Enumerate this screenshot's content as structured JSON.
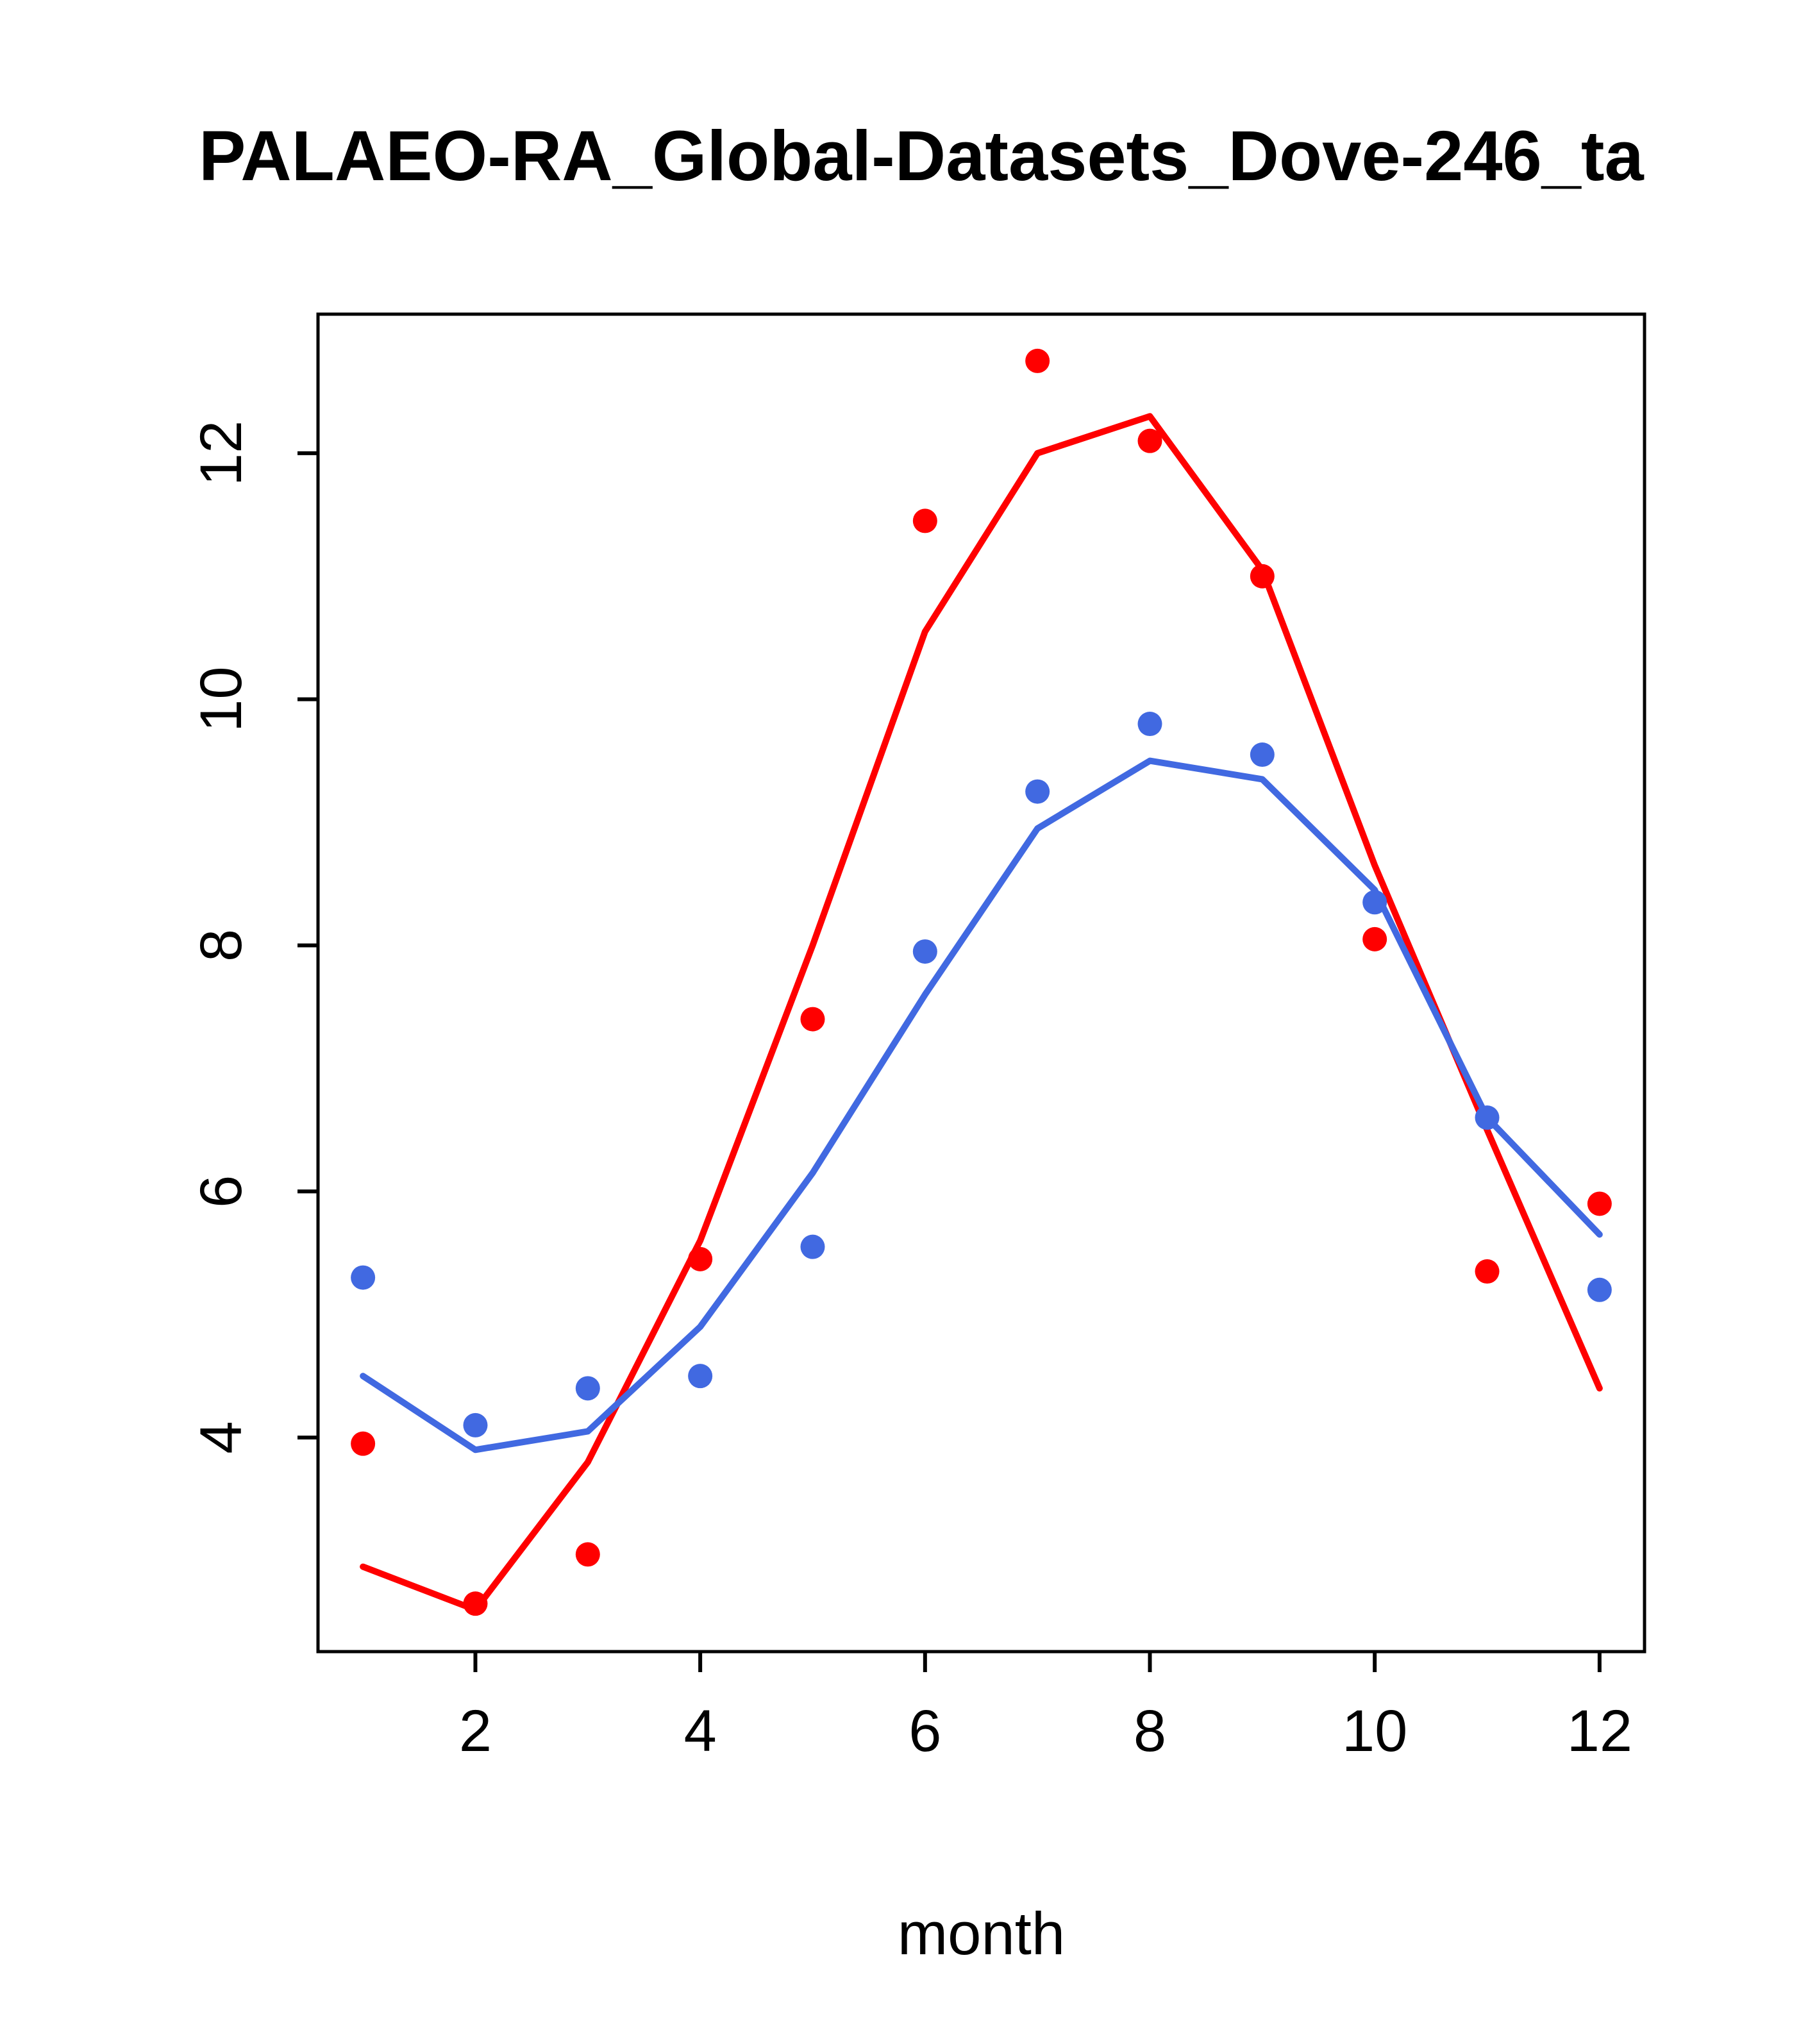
{
  "chart_data": {
    "type": "scatter",
    "title": "PALAEO-RA_Global-Datasets_Dove-246_ta",
    "xlabel": "month",
    "ylabel": "",
    "x": [
      1,
      2,
      3,
      4,
      5,
      6,
      7,
      8,
      9,
      10,
      11,
      12
    ],
    "xticks": [
      2,
      4,
      6,
      8,
      10,
      12
    ],
    "yticks": [
      4,
      6,
      8,
      10,
      12
    ],
    "xlim": [
      0.6,
      12.4
    ],
    "ylim": [
      2.26,
      13.13
    ],
    "grid": false,
    "legend": "none",
    "colors": {
      "red": "#ff0000",
      "blue": "#4169e1",
      "axis": "#000000"
    },
    "series": [
      {
        "name": "red-line",
        "style": "line",
        "color": "#ff0000",
        "values": [
          2.95,
          2.6,
          3.8,
          5.6,
          8.0,
          10.55,
          12.0,
          12.3,
          11.05,
          8.65,
          6.5,
          4.4
        ]
      },
      {
        "name": "blue-line",
        "style": "line",
        "color": "#4169e1",
        "values": [
          4.5,
          3.9,
          4.05,
          4.9,
          6.15,
          7.6,
          8.95,
          9.5,
          9.35,
          8.45,
          6.6,
          5.65
        ]
      },
      {
        "name": "red-points",
        "style": "points",
        "color": "#ff0000",
        "values": [
          3.95,
          2.65,
          3.05,
          5.45,
          7.4,
          11.45,
          12.75,
          12.1,
          11.0,
          8.05,
          5.35,
          5.9
        ]
      },
      {
        "name": "blue-points",
        "style": "points",
        "color": "#4169e1",
        "values": [
          5.3,
          4.1,
          4.4,
          4.5,
          5.55,
          7.95,
          9.25,
          9.8,
          9.55,
          8.35,
          6.6,
          5.2
        ]
      }
    ]
  }
}
